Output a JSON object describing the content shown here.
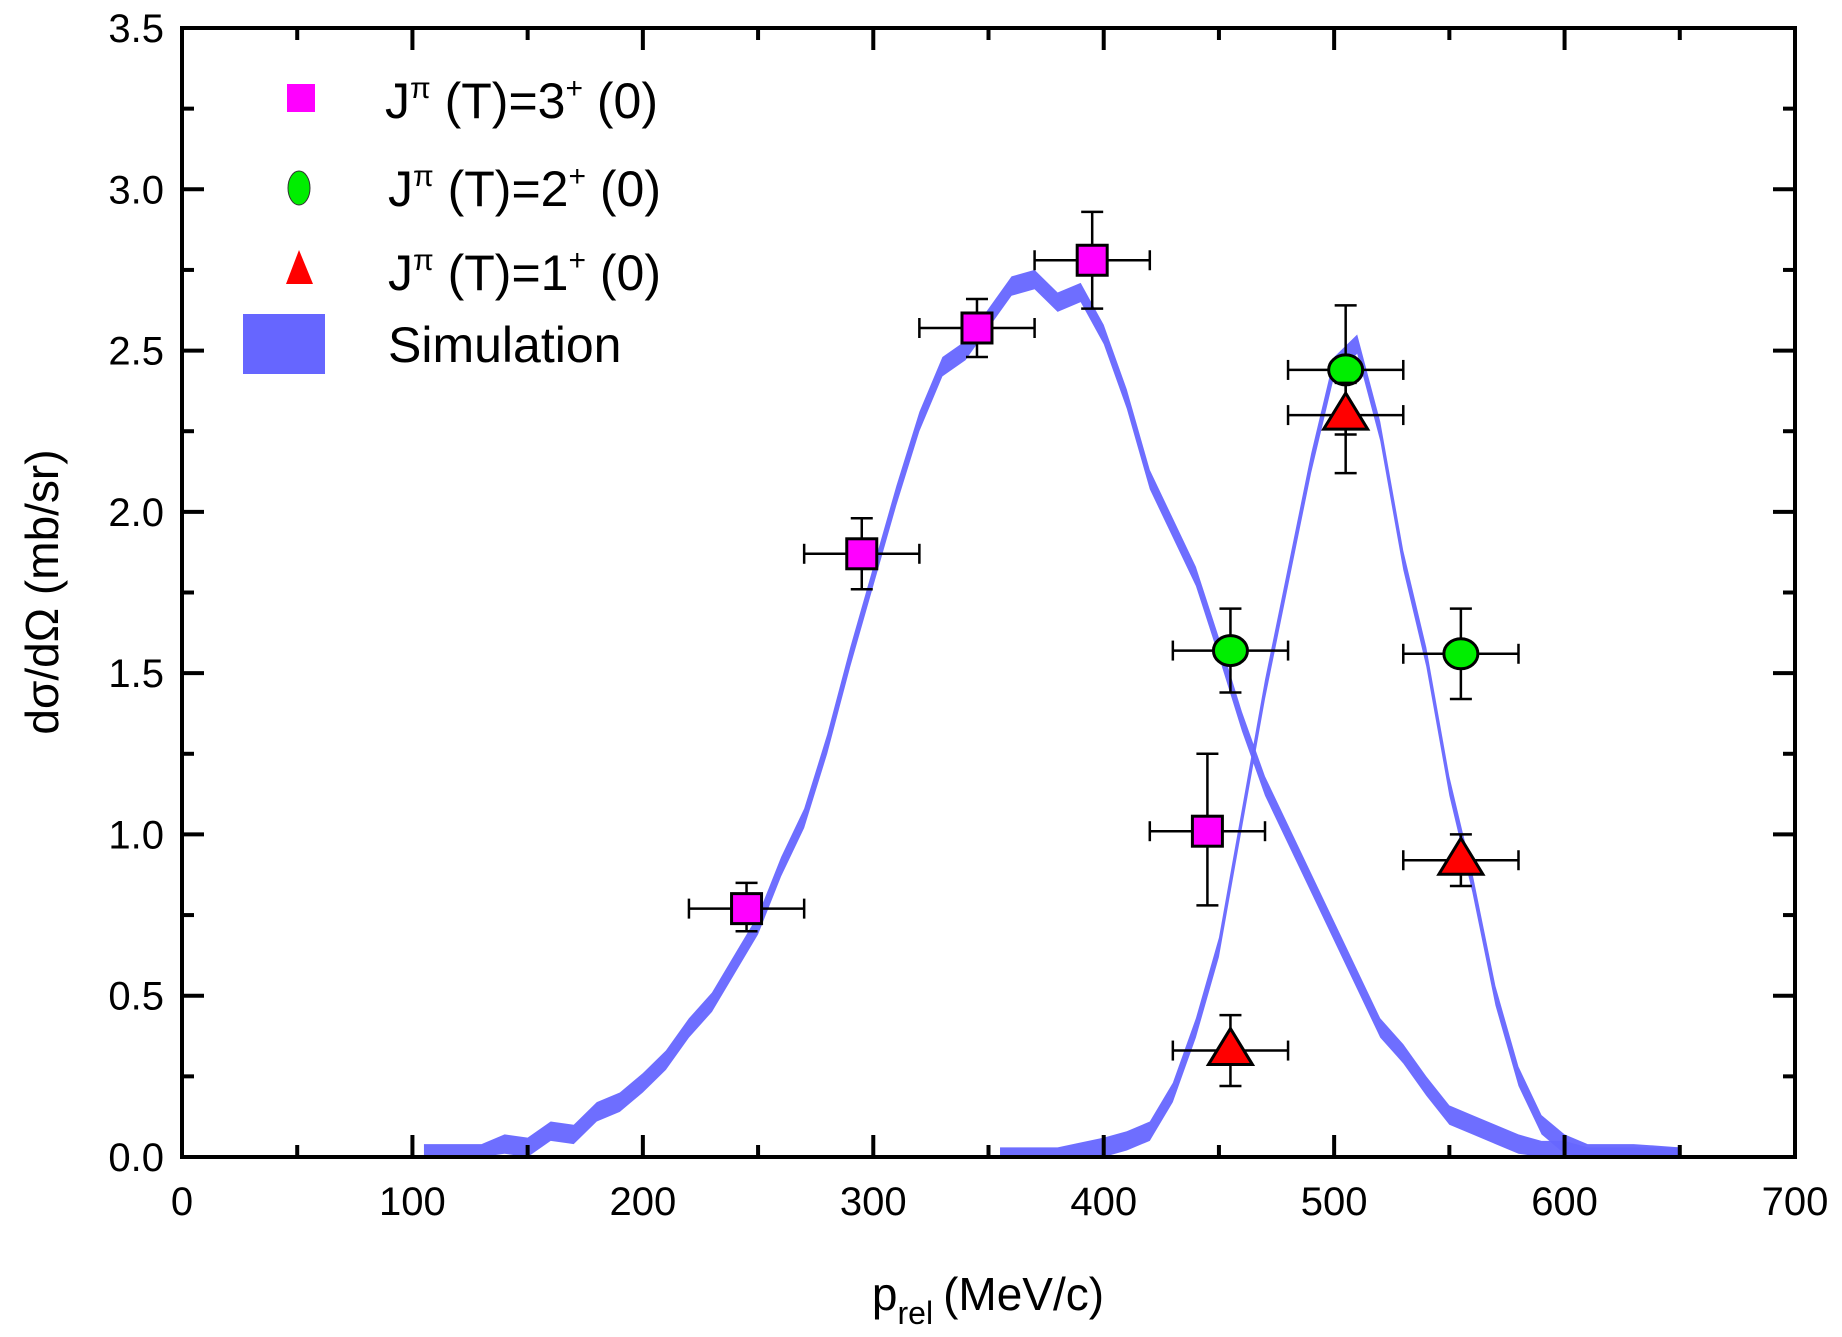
{
  "chart_data": {
    "type": "scatter",
    "xlabel": "p",
    "xlabel_sub": "rel",
    "xlabel_unit": "(MeV/c)",
    "ylabel": "dσ/dΩ (mb/sr)",
    "xlim": [
      0,
      700
    ],
    "ylim": [
      0,
      3.5
    ],
    "xticks": [
      0,
      100,
      200,
      300,
      400,
      500,
      600,
      700
    ],
    "yticks": [
      "0.0",
      "0.5",
      "1.0",
      "1.5",
      "2.0",
      "2.5",
      "3.0",
      "3.5"
    ],
    "grid": false,
    "legend_position": "top-left",
    "series": [
      {
        "name": "Jπ (T)=3+ (0)",
        "label_main": "J",
        "label_sup1": "π",
        "label_mid": " (T)=3",
        "label_sup2": "+",
        "label_end": " (0)",
        "marker": "square",
        "color": "#ff00ff",
        "points": [
          {
            "x": 245,
            "y": 0.77,
            "xerr": 25,
            "ylo": 0.7,
            "yhi": 0.85
          },
          {
            "x": 295,
            "y": 1.87,
            "xerr": 25,
            "ylo": 1.76,
            "yhi": 1.98
          },
          {
            "x": 345,
            "y": 2.57,
            "xerr": 25,
            "ylo": 2.48,
            "yhi": 2.66
          },
          {
            "x": 395,
            "y": 2.78,
            "xerr": 25,
            "ylo": 2.63,
            "yhi": 2.93
          },
          {
            "x": 445,
            "y": 1.01,
            "xerr": 25,
            "ylo": 0.78,
            "yhi": 1.25
          }
        ]
      },
      {
        "name": "Jπ (T)=2+ (0)",
        "label_main": "J",
        "label_sup1": "π",
        "label_mid": " (T)=2",
        "label_sup2": "+",
        "label_end": " (0)",
        "marker": "circle",
        "color": "#00ee00",
        "points": [
          {
            "x": 455,
            "y": 1.57,
            "xerr": 25,
            "ylo": 1.44,
            "yhi": 1.7
          },
          {
            "x": 505,
            "y": 2.44,
            "xerr": 25,
            "ylo": 2.24,
            "yhi": 2.64
          },
          {
            "x": 555,
            "y": 1.56,
            "xerr": 25,
            "ylo": 1.42,
            "yhi": 1.7
          }
        ]
      },
      {
        "name": "Jπ (T)=1+ (0)",
        "label_main": "J",
        "label_sup1": "π",
        "label_mid": " (T)=1",
        "label_sup2": "+",
        "label_end": " (0)",
        "marker": "triangle",
        "color": "#ff0000",
        "points": [
          {
            "x": 455,
            "y": 0.33,
            "xerr": 25,
            "ylo": 0.22,
            "yhi": 0.44
          },
          {
            "x": 505,
            "y": 2.3,
            "xerr": 25,
            "ylo": 2.12,
            "yhi": 2.4
          },
          {
            "x": 555,
            "y": 0.92,
            "xerr": 25,
            "ylo": 0.84,
            "yhi": 1.0
          }
        ]
      },
      {
        "name": "Simulation",
        "marker": "band",
        "color": "#6666ff",
        "band_halfwidth": 0.03,
        "curves": [
          {
            "x": [
              105,
              130,
              140,
              150,
              160,
              170,
              180,
              190,
              200,
              210,
              220,
              230,
              240,
              250,
              260,
              270,
              280,
              290,
              300,
              310,
              320,
              330,
              340,
              350,
              360,
              370,
              380,
              390,
              400,
              410,
              420,
              430,
              440,
              450,
              460,
              470,
              480,
              490,
              500,
              510,
              520,
              530,
              540,
              550,
              560,
              570,
              580,
              590,
              600,
              610,
              650
            ],
            "y": [
              0.01,
              0.01,
              0.04,
              0.03,
              0.08,
              0.07,
              0.14,
              0.17,
              0.23,
              0.3,
              0.4,
              0.48,
              0.6,
              0.72,
              0.9,
              1.05,
              1.28,
              1.55,
              1.8,
              2.05,
              2.28,
              2.45,
              2.5,
              2.6,
              2.7,
              2.72,
              2.65,
              2.68,
              2.55,
              2.35,
              2.1,
              1.95,
              1.8,
              1.58,
              1.35,
              1.15,
              1.0,
              0.85,
              0.7,
              0.55,
              0.4,
              0.32,
              0.22,
              0.13,
              0.1,
              0.07,
              0.04,
              0.02,
              0.02,
              0.0,
              0.0
            ]
          },
          {
            "x": [
              355,
              380,
              400,
              410,
              420,
              430,
              440,
              450,
              460,
              470,
              480,
              490,
              500,
              510,
              520,
              530,
              540,
              550,
              560,
              570,
              580,
              590,
              600,
              610,
              630,
              650
            ],
            "y": [
              0.0,
              0.0,
              0.03,
              0.05,
              0.08,
              0.2,
              0.4,
              0.65,
              1.05,
              1.45,
              1.8,
              2.15,
              2.45,
              2.52,
              2.25,
              1.85,
              1.55,
              1.15,
              0.85,
              0.5,
              0.25,
              0.1,
              0.04,
              0.01,
              0.01,
              0.0
            ]
          }
        ]
      }
    ]
  }
}
